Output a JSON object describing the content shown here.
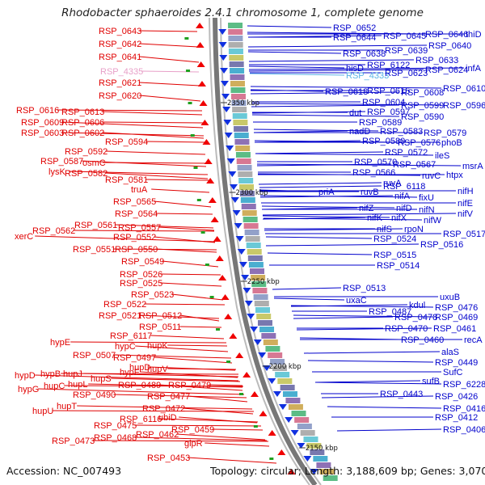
{
  "title": "Rhodobacter sphaeroides 2.4.1 chromosome 1, complete genome",
  "footer": {
    "accession": "Accession: NC_007493",
    "topology": "Topology: circular; Length: 3,188,609 bp; Genes: 3,070"
  },
  "scale_ticks": [
    "2350 kbp",
    "2300 kbp",
    "2250 kbp",
    "2200 kbp",
    "2150 kbp"
  ],
  "colors": {
    "left_labels": "#e00000",
    "right_labels": "#0000cc",
    "pink_label": "#e8a0c8",
    "cyan_label": "#5ab4e6"
  },
  "left_labels": [
    "RSP_0643",
    "RSP_0642",
    "RSP_0641",
    "RSP_4335",
    "RSP_0621",
    "RSP_0620",
    "RSP_0616",
    "RSP_0613",
    "RSP_0609",
    "RSP_0606",
    "RSP_0603",
    "RSP_0602",
    "RSP_0594",
    "RSP_0592",
    "RSP_0587",
    "osmC",
    "lysK",
    "RSP_0582",
    "RSP_0581",
    "truA",
    "RSP_0565",
    "RSP_0564",
    "RSP_0561",
    "xerC",
    "RSP_0562",
    "RSP_0557",
    "RSP_0552",
    "RSP_0551",
    "RSP_0550",
    "RSP_0549",
    "RSP_0526",
    "RSP_0525",
    "RSP_0523",
    "RSP_0522",
    "RSP_0521",
    "RSP_0512",
    "RSP_0511",
    "RSP_6117",
    "hypC",
    "hupK",
    "RSP_0507",
    "RSP_0497",
    "hypE",
    "hupD",
    "hypD",
    "hypB",
    "hupJ",
    "hypF",
    "hupV",
    "hupS",
    "hypG",
    "hupC",
    "hupL",
    "RSP_0489",
    "RSP_0479",
    "RSP_0490",
    "RSP_0477",
    "hupU",
    "hupT",
    "RSP_0472",
    "RSP_0475",
    "RSP_6116",
    "ubiD",
    "RSP_0473",
    "RSP_0468",
    "RSP_0462",
    "RSP_0459",
    "glpR",
    "RSP_0453"
  ],
  "right_labels": [
    "RSP_0652",
    "RSP_0644",
    "RSP_0645",
    "RSP_0646",
    "thiD",
    "RSP_0640",
    "RSP_0638",
    "RSP_0639",
    "RSP_0633",
    "hisD",
    "RSP_6122",
    "infA",
    "RSP_4333",
    "RSP_0623",
    "RSP_0624",
    "RSP_0618",
    "RSP_0615",
    "RSP_0608",
    "RSP_0610",
    "RSP_0604",
    "RSP_0599",
    "RSP_0596",
    "dut",
    "RSP_0597",
    "RSP_0590",
    "RSP_0589",
    "nadD",
    "RSP_0583",
    "RSP_0579",
    "RSP_0580",
    "RSP_0576",
    "phoB",
    "RSP_0572",
    "ileS",
    "RSP_0570",
    "RSP_0567",
    "msrA",
    "RSP_0566",
    "ruvA",
    "ruvC",
    "htpx",
    "RSP_6118",
    "priA",
    "ruvB",
    "nifA",
    "fixU",
    "nifH",
    "nifZ",
    "nifD",
    "nifE",
    "nifK",
    "nifX",
    "nifN",
    "nifV",
    "nifW",
    "nifS",
    "rpoN",
    "RSP_0524",
    "RSP_0517",
    "RSP_0516",
    "RSP_0515",
    "RSP_0514",
    "RSP_0513",
    "uxaC",
    "uxuB",
    "kdul",
    "RSP_0476",
    "RSP_0487",
    "RSP_0478",
    "RSP_0469",
    "RSP_0470",
    "RSP_0461",
    "RSP_0460",
    "recA",
    "alaS",
    "RSP_0449",
    "SufC",
    "sufB",
    "RSP_6228",
    "RSP_0443",
    "RSP_0426",
    "RSP_0416",
    "RSP_0412",
    "RSP_0406"
  ]
}
